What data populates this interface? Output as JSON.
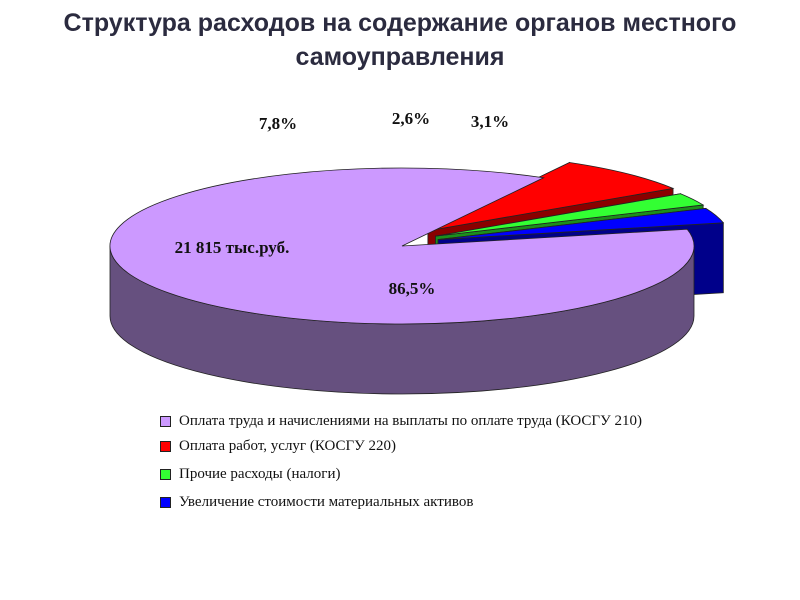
{
  "title": {
    "line1": "Структура расходов на содержание органов  местного",
    "line2": "самоуправления"
  },
  "chart_data": {
    "type": "pie",
    "subtype": "3d-exploded",
    "slices": [
      {
        "label": "Оплата труда и начислениями на выплаты по оплате труда (КОСГУ 210)",
        "value": 86.5,
        "value_label": "86,5%",
        "color": "#CC99FF",
        "side_color": "#66507F"
      },
      {
        "label": "Оплата работ, услуг (КОСГУ 220)",
        "value": 7.8,
        "value_label": "7,8%",
        "color": "#FF0000",
        "side_color": "#8A0000"
      },
      {
        "label": "Прочие расходы (налоги)",
        "value": 2.6,
        "value_label": "2,6%",
        "color": "#33FF33",
        "side_color": "#1B8F1B"
      },
      {
        "label": "Увеличение стоимости материальных активов",
        "value": 3.1,
        "value_label": "3,1%",
        "color": "#0000FF",
        "side_color": "#00008A"
      }
    ],
    "annotation": "21 815 тыс.руб.",
    "legend_position": "bottom"
  },
  "legend": {
    "items": [
      {
        "label": "Оплата труда и начислениями на выплаты по оплате труда (КОСГУ 210)",
        "color": "#CC99FF"
      },
      {
        "label": "Оплата работ, услуг (КОСГУ 220)",
        "color": "#FF0000"
      },
      {
        "label": "Прочие расходы (налоги)",
        "color": "#33FF33"
      },
      {
        "label": "Увеличение стоимости материальных активов",
        "color": "#0000FF"
      }
    ]
  }
}
